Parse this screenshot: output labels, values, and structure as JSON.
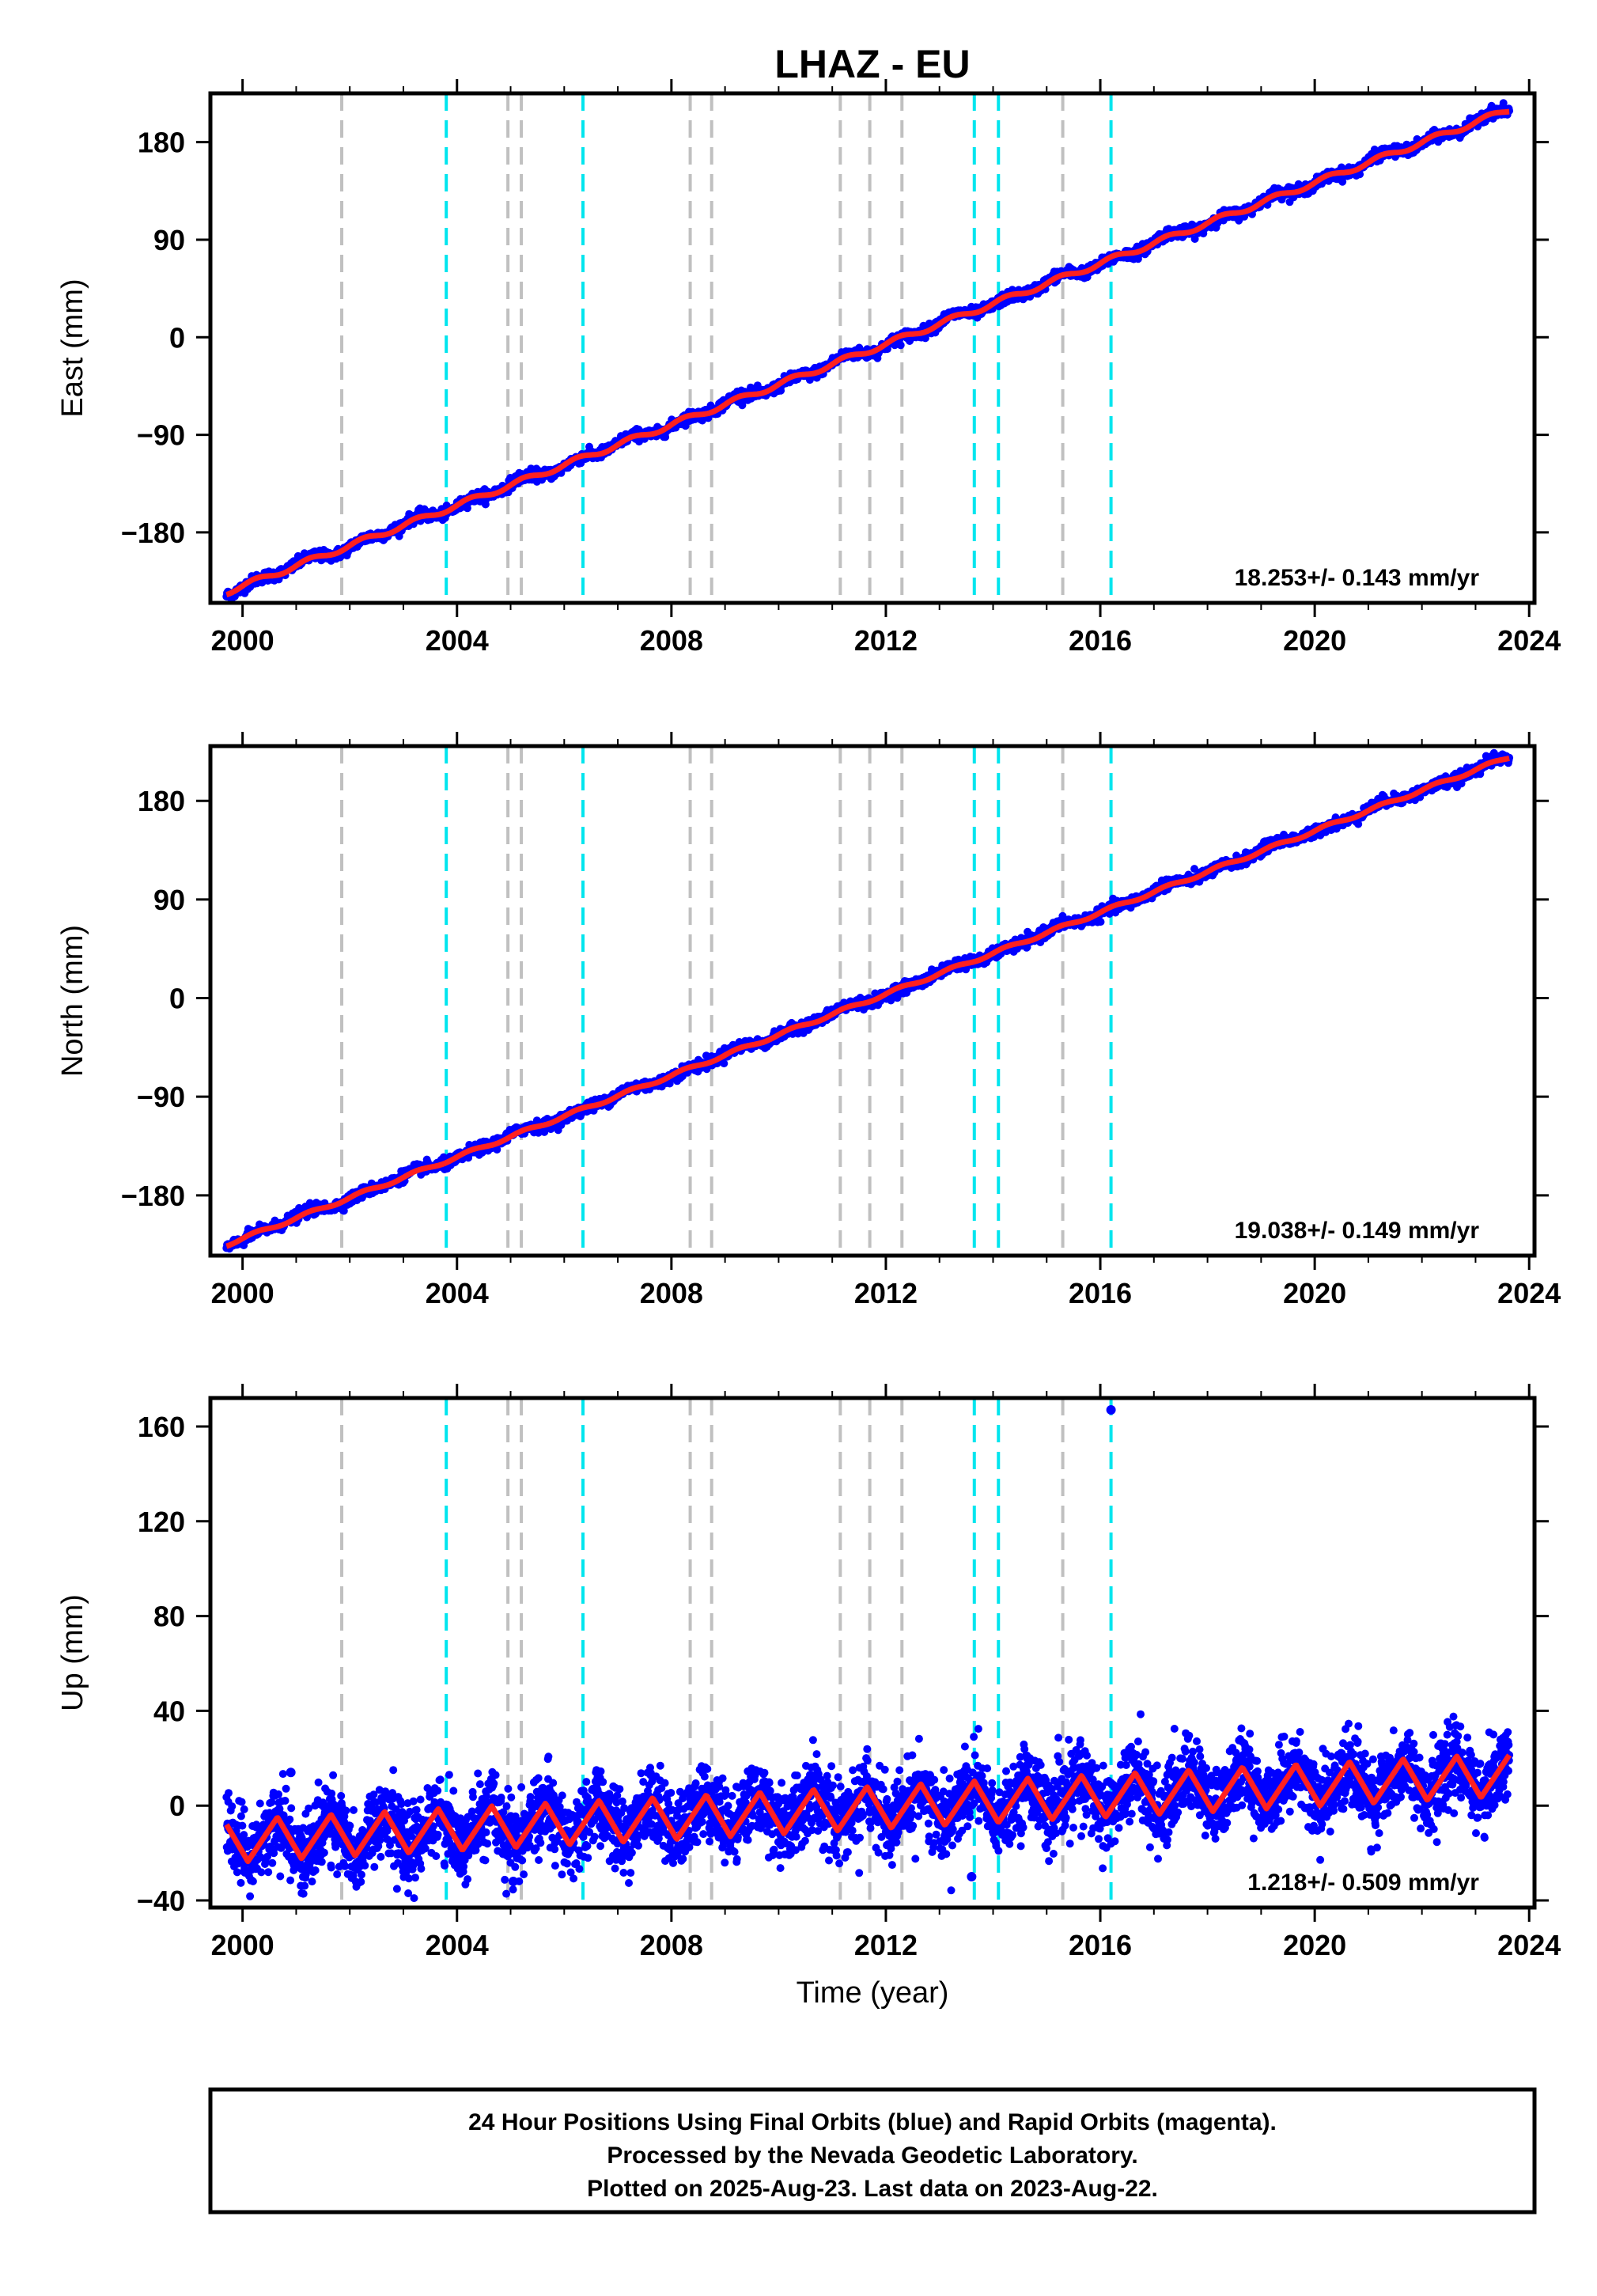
{
  "title": "LHAZ - EU",
  "footer": {
    "line1": "24 Hour Positions Using Final Orbits (blue) and Rapid Orbits (magenta).",
    "line2": "Processed by the Nevada Geodetic Laboratory.",
    "line3": "Plotted on 2025-Aug-23. Last data on 2023-Aug-22."
  },
  "colors": {
    "final_orbits": "#0000ff",
    "model_fit": "#ff2020",
    "antenna_change": "#00e5ee",
    "equipment_change": "#c0c0c0",
    "frame": "#000000"
  },
  "chart_data": [
    {
      "type": "scatter",
      "component": "East",
      "ylabel": "East (mm)",
      "xlabel": "",
      "xlim": [
        1999.4,
        2024.1
      ],
      "ylim": [
        -245,
        225
      ],
      "xticks": [
        2000,
        2004,
        2008,
        2012,
        2016,
        2020,
        2024
      ],
      "yticks": [
        -180,
        -90,
        0,
        90,
        180
      ],
      "ytick_labels": [
        "−180",
        "−90",
        "0",
        "90",
        "180"
      ],
      "data_start": 1999.7,
      "data_end": 2023.63,
      "start_value": -235,
      "end_value": 210,
      "seasonal_amplitude": 2.5,
      "scatter_noise": 2.5,
      "rate_label": "18.253+/- 0.143 mm/yr",
      "offsets": [
        {
          "year": 2001.85,
          "value": 8
        },
        {
          "year": 2003.8,
          "value": 0
        },
        {
          "year": 2004.95,
          "value": 0
        },
        {
          "year": 2005.2,
          "value": 0
        },
        {
          "year": 2006.35,
          "value": 0
        },
        {
          "year": 2008.35,
          "value": 0
        },
        {
          "year": 2008.75,
          "value": 6
        },
        {
          "year": 2011.15,
          "value": 0
        },
        {
          "year": 2011.7,
          "value": 0
        },
        {
          "year": 2012.3,
          "value": 0
        },
        {
          "year": 2013.65,
          "value": 0
        },
        {
          "year": 2014.1,
          "value": 0
        },
        {
          "year": 2015.3,
          "value": 0
        },
        {
          "year": 2016.2,
          "value": 0
        }
      ]
    },
    {
      "type": "scatter",
      "component": "North",
      "ylabel": "North (mm)",
      "xlabel": "",
      "xlim": [
        1999.4,
        2024.1
      ],
      "ylim": [
        -235,
        230
      ],
      "xticks": [
        2000,
        2004,
        2008,
        2012,
        2016,
        2020,
        2024
      ],
      "yticks": [
        -180,
        -90,
        0,
        90,
        180
      ],
      "ytick_labels": [
        "−180",
        "−90",
        "0",
        "90",
        "180"
      ],
      "data_start": 1999.7,
      "data_end": 2023.63,
      "start_value": -225,
      "end_value": 220,
      "seasonal_amplitude": 1.5,
      "scatter_noise": 2.5,
      "rate_label": "19.038+/- 0.149 mm/yr",
      "offsets": [
        {
          "year": 2001.85,
          "value": 0
        },
        {
          "year": 2003.8,
          "value": 0
        },
        {
          "year": 2004.95,
          "value": 0
        },
        {
          "year": 2005.2,
          "value": 0
        },
        {
          "year": 2006.35,
          "value": 0
        },
        {
          "year": 2008.35,
          "value": 0
        },
        {
          "year": 2008.75,
          "value": 0
        },
        {
          "year": 2011.15,
          "value": 0
        },
        {
          "year": 2011.7,
          "value": 0
        },
        {
          "year": 2012.3,
          "value": 0
        },
        {
          "year": 2013.65,
          "value": 0
        },
        {
          "year": 2014.1,
          "value": 0
        },
        {
          "year": 2015.3,
          "value": 0
        },
        {
          "year": 2016.2,
          "value": 0
        }
      ]
    },
    {
      "type": "scatter",
      "component": "Up",
      "ylabel": "Up (mm)",
      "xlabel": "Time (year)",
      "xlim": [
        1999.4,
        2024.1
      ],
      "ylim": [
        -43,
        172
      ],
      "xticks": [
        2000,
        2004,
        2008,
        2012,
        2016,
        2020,
        2024
      ],
      "yticks": [
        -40,
        0,
        40,
        80,
        120,
        160
      ],
      "ytick_labels": [
        "−40",
        "0",
        "40",
        "80",
        "120",
        "160"
      ],
      "data_start": 1999.7,
      "data_end": 2023.63,
      "start_value": -15,
      "end_value": 13,
      "seasonal_amplitude": 10,
      "scatter_noise": 8,
      "rate_label": "1.218+/- 0.509 mm/yr",
      "outliers": [
        {
          "year": 2016.2,
          "value": 167
        },
        {
          "year": 2005.05,
          "value": -32
        },
        {
          "year": 2013.6,
          "value": -30
        },
        {
          "year": 2000.9,
          "value": 14
        }
      ],
      "offsets": []
    }
  ],
  "event_lines": [
    {
      "year": 2001.85,
      "kind": "equipment"
    },
    {
      "year": 2003.8,
      "kind": "antenna"
    },
    {
      "year": 2004.95,
      "kind": "equipment"
    },
    {
      "year": 2005.2,
      "kind": "equipment"
    },
    {
      "year": 2006.35,
      "kind": "antenna"
    },
    {
      "year": 2008.35,
      "kind": "equipment"
    },
    {
      "year": 2008.75,
      "kind": "equipment"
    },
    {
      "year": 2011.15,
      "kind": "equipment"
    },
    {
      "year": 2011.7,
      "kind": "equipment"
    },
    {
      "year": 2012.3,
      "kind": "equipment"
    },
    {
      "year": 2013.65,
      "kind": "antenna"
    },
    {
      "year": 2014.1,
      "kind": "antenna"
    },
    {
      "year": 2015.3,
      "kind": "equipment"
    },
    {
      "year": 2016.2,
      "kind": "antenna"
    }
  ]
}
